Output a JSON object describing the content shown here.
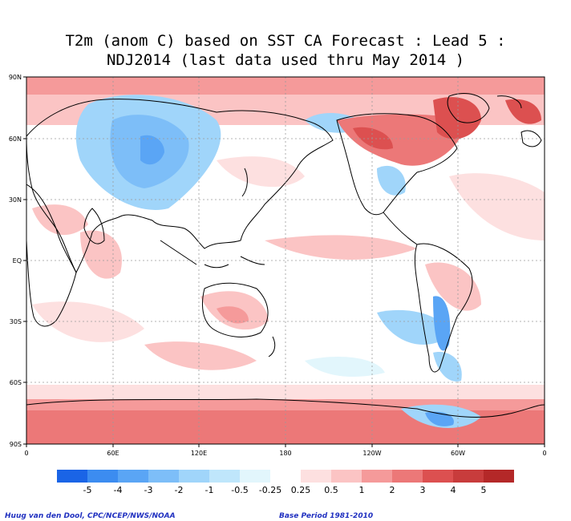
{
  "title": {
    "line1": "T2m (anom C) based on SST CA Forecast : Lead 5 :",
    "line2": "NDJ2014 (last data used thru May 2014 )"
  },
  "axes": {
    "lat_labels": [
      "90N",
      "60N",
      "30N",
      "EQ",
      "30S",
      "60S",
      "90S"
    ],
    "lon_labels": [
      "0",
      "60E",
      "120E",
      "180",
      "120W",
      "60W",
      "0"
    ]
  },
  "legend": {
    "labels": [
      "-5",
      "-4",
      "-3",
      "-2",
      "-1",
      "-0.5",
      "-0.25",
      "0.25",
      "0.5",
      "1",
      "2",
      "3",
      "4",
      "5"
    ],
    "colors": [
      "#1a64e6",
      "#3c8cf0",
      "#5aa5f5",
      "#7dbef8",
      "#a0d5fa",
      "#bfe6fb",
      "#e2f6fc",
      "#ffffff",
      "#fde0e0",
      "#fbc4c4",
      "#f59a9a",
      "#ec7878",
      "#dc5050",
      "#c83c3c",
      "#b42828"
    ]
  },
  "credits": {
    "left": "Huug van den Dool, CPC/NCEP/NWS/NOAA",
    "right": "Base Period 1981-2010"
  }
}
